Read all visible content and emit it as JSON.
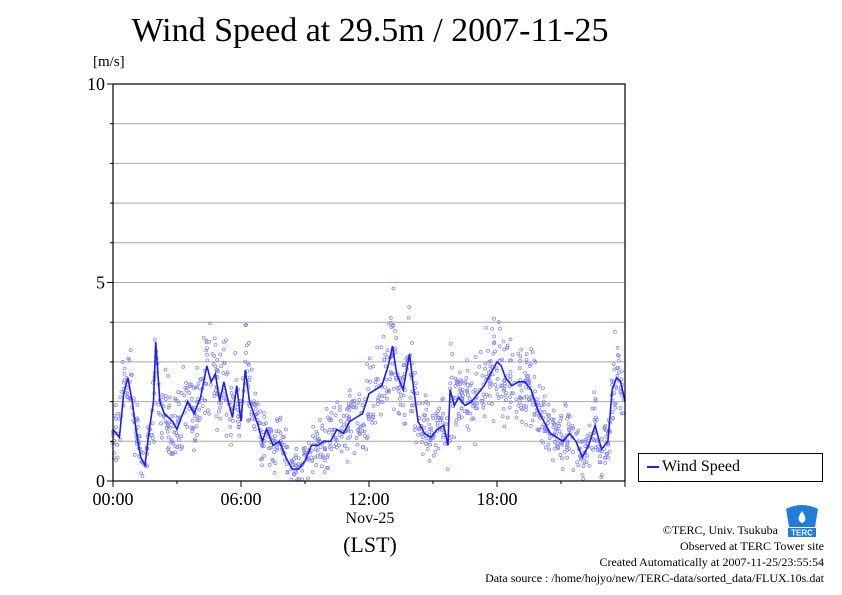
{
  "chart_data": {
    "type": "scatter",
    "title": "Wind Speed at 29.5m / 2007-11-25",
    "ylabel": "[m/s]",
    "xlabel": "(LST)",
    "x_date_label": "Nov-25",
    "ylim": [
      0,
      10
    ],
    "xlim_hours": [
      0,
      24
    ],
    "y_ticks": [
      "0",
      "5",
      "10"
    ],
    "x_ticks": [
      {
        "hour": 0,
        "label": "00:00"
      },
      {
        "hour": 6,
        "label": "06:00"
      },
      {
        "hour": 12,
        "label": "12:00"
      },
      {
        "hour": 18,
        "label": "18:00"
      }
    ],
    "grid": "horizontal",
    "legend_position": "bottom-right",
    "series": [
      {
        "name": "Wind Speed",
        "color": "#1d1df0",
        "point_color": "#7f7ff4",
        "line_points": [
          [
            0.0,
            1.3
          ],
          [
            0.3,
            1.1
          ],
          [
            0.5,
            2.2
          ],
          [
            0.7,
            2.6
          ],
          [
            0.9,
            2.0
          ],
          [
            1.1,
            1.2
          ],
          [
            1.3,
            0.6
          ],
          [
            1.5,
            0.4
          ],
          [
            1.7,
            1.3
          ],
          [
            1.9,
            2.0
          ],
          [
            2.0,
            3.5
          ],
          [
            2.2,
            2.0
          ],
          [
            2.4,
            1.7
          ],
          [
            2.6,
            1.6
          ],
          [
            2.8,
            1.5
          ],
          [
            3.0,
            1.3
          ],
          [
            3.2,
            1.6
          ],
          [
            3.5,
            2.0
          ],
          [
            3.8,
            1.7
          ],
          [
            4.1,
            2.1
          ],
          [
            4.4,
            2.9
          ],
          [
            4.6,
            2.5
          ],
          [
            4.8,
            2.7
          ],
          [
            5.0,
            2.0
          ],
          [
            5.2,
            2.5
          ],
          [
            5.4,
            2.0
          ],
          [
            5.6,
            1.6
          ],
          [
            5.8,
            2.4
          ],
          [
            6.0,
            1.5
          ],
          [
            6.2,
            2.8
          ],
          [
            6.4,
            2.0
          ],
          [
            6.6,
            1.7
          ],
          [
            6.8,
            1.4
          ],
          [
            7.0,
            1.0
          ],
          [
            7.2,
            1.3
          ],
          [
            7.5,
            0.9
          ],
          [
            7.8,
            1.0
          ],
          [
            8.1,
            0.6
          ],
          [
            8.4,
            0.3
          ],
          [
            8.7,
            0.3
          ],
          [
            9.0,
            0.5
          ],
          [
            9.3,
            0.9
          ],
          [
            9.6,
            0.9
          ],
          [
            9.9,
            1.0
          ],
          [
            10.2,
            1.0
          ],
          [
            10.5,
            1.3
          ],
          [
            10.8,
            1.2
          ],
          [
            11.1,
            1.5
          ],
          [
            11.4,
            1.6
          ],
          [
            11.7,
            1.7
          ],
          [
            12.0,
            2.2
          ],
          [
            12.3,
            2.3
          ],
          [
            12.6,
            2.4
          ],
          [
            12.9,
            2.9
          ],
          [
            13.1,
            3.4
          ],
          [
            13.3,
            2.7
          ],
          [
            13.6,
            2.3
          ],
          [
            13.9,
            3.2
          ],
          [
            14.1,
            2.3
          ],
          [
            14.3,
            1.5
          ],
          [
            14.6,
            1.2
          ],
          [
            14.9,
            1.1
          ],
          [
            15.2,
            1.3
          ],
          [
            15.5,
            1.4
          ],
          [
            15.7,
            0.9
          ],
          [
            15.8,
            2.3
          ],
          [
            16.0,
            1.9
          ],
          [
            16.2,
            2.1
          ],
          [
            16.5,
            1.9
          ],
          [
            16.8,
            2.0
          ],
          [
            17.1,
            2.2
          ],
          [
            17.4,
            2.4
          ],
          [
            17.7,
            2.7
          ],
          [
            18.0,
            3.0
          ],
          [
            18.2,
            2.9
          ],
          [
            18.4,
            2.6
          ],
          [
            18.7,
            2.4
          ],
          [
            19.0,
            2.5
          ],
          [
            19.3,
            2.5
          ],
          [
            19.6,
            2.3
          ],
          [
            19.9,
            1.8
          ],
          [
            20.2,
            1.5
          ],
          [
            20.5,
            1.2
          ],
          [
            20.8,
            1.1
          ],
          [
            21.1,
            1.0
          ],
          [
            21.4,
            1.2
          ],
          [
            21.7,
            1.0
          ],
          [
            22.0,
            0.6
          ],
          [
            22.3,
            0.9
          ],
          [
            22.6,
            1.4
          ],
          [
            22.9,
            0.8
          ],
          [
            23.2,
            1.0
          ],
          [
            23.4,
            2.3
          ],
          [
            23.6,
            2.6
          ],
          [
            23.8,
            2.5
          ],
          [
            24.0,
            2.0
          ]
        ]
      }
    ]
  },
  "footer": {
    "copyright": "©TERC, Univ. Tsukuba",
    "observed": "Observed at TERC Tower site",
    "created": "Created Automatically at 2007-11-25/23:55:54",
    "source": "Data source : /home/hojyo/new/TERC-data/sorted_data/FLUX.10s.dat"
  },
  "logo": {
    "text": "TERC",
    "color": "#1f7fd8",
    "icon": "terc-logo-icon"
  }
}
